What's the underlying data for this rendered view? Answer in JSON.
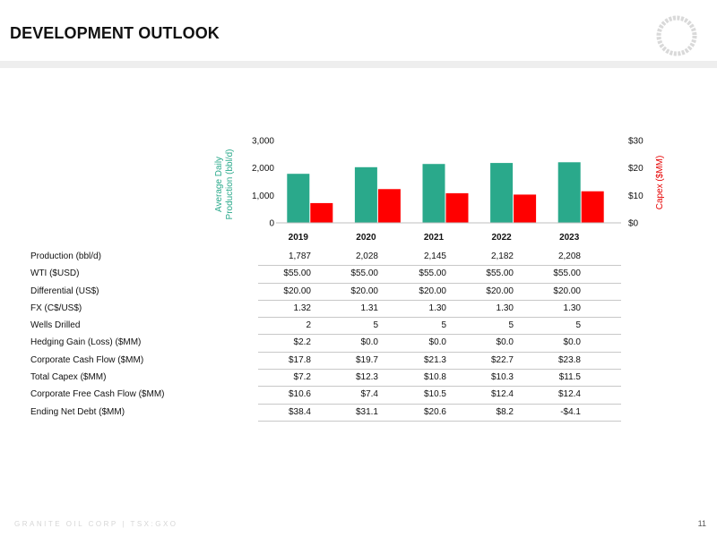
{
  "slide": {
    "title": "DEVELOPMENT OUTLOOK",
    "footer": "GRANITE OIL CORP | TSX:GXO",
    "page_number": "11"
  },
  "colors": {
    "production": "#2aa98b",
    "capex": "#ff0000",
    "right_axis_label": "#e60000"
  },
  "chart_data": {
    "type": "bar",
    "categories": [
      "2019",
      "2020",
      "2021",
      "2022",
      "2023"
    ],
    "series": [
      {
        "values": [
          1787,
          2028,
          2145,
          2182,
          2208
        ],
        "axis": "left"
      },
      {
        "values": [
          7.2,
          12.3,
          10.8,
          10.3,
          11.5
        ],
        "axis": "right"
      }
    ],
    "y_left": {
      "label": "Average Daily Production (bbl/d)",
      "ylim": [
        0,
        3000
      ],
      "ticks": [
        "0",
        "1,000",
        "2,000",
        "3,000"
      ]
    },
    "y_right": {
      "label": "Capex ($MM)",
      "ylim": [
        0,
        30
      ],
      "ticks": [
        "$0",
        "$10",
        "$20",
        "$30"
      ]
    },
    "legend": "none",
    "grid": false
  },
  "table": {
    "rows": [
      {
        "label": "Production (bbl/d)",
        "values": [
          "1,787",
          "2,028",
          "2,145",
          "2,182",
          "2,208"
        ]
      },
      {
        "label": "WTI ($USD)",
        "values": [
          "$55.00",
          "$55.00",
          "$55.00",
          "$55.00",
          "$55.00"
        ]
      },
      {
        "label": "Differential (US$)",
        "values": [
          "$20.00",
          "$20.00",
          "$20.00",
          "$20.00",
          "$20.00"
        ]
      },
      {
        "label": "FX (C$/US$)",
        "values": [
          "1.32",
          "1.31",
          "1.30",
          "1.30",
          "1.30"
        ]
      },
      {
        "label": "Wells Drilled",
        "values": [
          "2",
          "5",
          "5",
          "5",
          "5"
        ]
      },
      {
        "label": "Hedging Gain (Loss) ($MM)",
        "values": [
          "$2.2",
          "$0.0",
          "$0.0",
          "$0.0",
          "$0.0"
        ]
      },
      {
        "label": "Corporate Cash Flow ($MM)",
        "values": [
          "$17.8",
          "$19.7",
          "$21.3",
          "$22.7",
          "$23.8"
        ]
      },
      {
        "label": "Total Capex ($MM)",
        "values": [
          "$7.2",
          "$12.3",
          "$10.8",
          "$10.3",
          "$11.5"
        ]
      },
      {
        "label": "Corporate Free Cash Flow ($MM)",
        "values": [
          "$10.6",
          "$7.4",
          "$10.5",
          "$12.4",
          "$12.4"
        ]
      },
      {
        "label": "Ending Net Debt ($MM)",
        "values": [
          "$38.4",
          "$31.1",
          "$20.6",
          "$8.2",
          "-$4.1"
        ]
      }
    ]
  }
}
